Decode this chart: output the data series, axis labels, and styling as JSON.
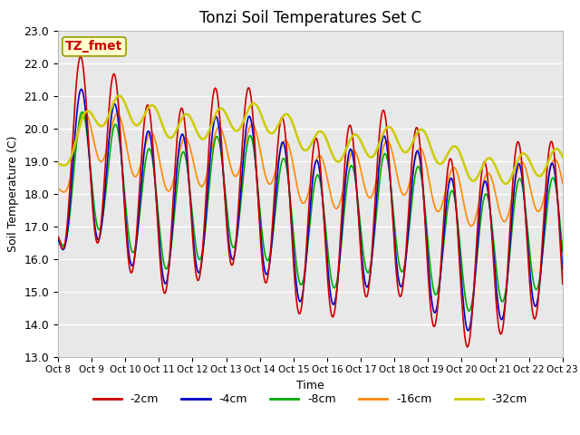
{
  "title": "Tonzi Soil Temperatures Set C",
  "xlabel": "Time",
  "ylabel": "Soil Temperature (C)",
  "ylim": [
    13.0,
    23.0
  ],
  "yticks": [
    13.0,
    14.0,
    15.0,
    16.0,
    17.0,
    18.0,
    19.0,
    20.0,
    21.0,
    22.0,
    23.0
  ],
  "xtick_labels": [
    "Oct 8",
    "Oct 9",
    "Oct 10",
    "Oct 11",
    "Oct 12",
    "Oct 13",
    "Oct 14",
    "Oct 15",
    "Oct 16",
    "Oct 17",
    "Oct 18",
    "Oct 19",
    "Oct 20",
    "Oct 21",
    "Oct 22",
    "Oct 23"
  ],
  "legend_labels": [
    "-2cm",
    "-4cm",
    "-8cm",
    "-16cm",
    "-32cm"
  ],
  "line_colors": [
    "#cc0000",
    "#0000cc",
    "#00aa00",
    "#ff8800",
    "#cccc00"
  ],
  "line_widths": [
    1.2,
    1.2,
    1.2,
    1.2,
    1.8
  ],
  "bg_color": "#e8e8e8",
  "annotation_text": "TZ_fmet",
  "annotation_bg": "#ffffcc",
  "annotation_border": "#999900",
  "annotation_color": "#cc0000",
  "fig_width": 6.4,
  "fig_height": 4.8,
  "dpi": 100
}
